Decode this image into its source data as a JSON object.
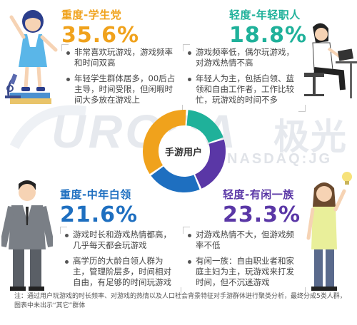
{
  "center": {
    "label": "手游用户"
  },
  "segments": [
    {
      "title": "重度-学生党",
      "percent": "35.6%",
      "value": 35.6,
      "color": "#f0a21c",
      "points": [
        "非常喜欢玩游戏，游戏频率和时间双高",
        "年轻学生群体居多，00后占主导，时间受限，但闲暇时间大多放在游戏上"
      ]
    },
    {
      "title": "轻度-年轻职人",
      "percent": "18.8%",
      "value": 18.8,
      "color": "#1fb19a",
      "points": [
        "游戏频率低，偶尔玩游戏，对游戏热情不高",
        "年轻人为主，包括白领、蓝领和自由工作者，工作比较忙，玩游戏的时间不多"
      ]
    },
    {
      "title": "重度-中年白领",
      "percent": "21.6%",
      "value": 21.6,
      "color": "#1e6fc0",
      "points": [
        "游戏时长和游戏热情都高，几乎每天都会玩游戏",
        "高学历的大龄白领人群为主，管理阶层多，时间相对自由，有足够的时间玩游戏"
      ]
    },
    {
      "title": "轻度-有闲一族",
      "percent": "23.3%",
      "value": 23.3,
      "color": "#5a37a6",
      "points": [
        "对游戏热情不大，但游戏频率不低",
        "有闲一族：自由职业者和家庭主妇为主，玩游戏来打发时间，但不沉迷游戏"
      ]
    }
  ],
  "watermark": {
    "brand": "URORA",
    "brand_cn": "极光",
    "ticker": "NASDAQ:JG"
  },
  "footnote": "注：通过用户玩游戏的时长频率、对游戏的热情以及人口社会背景特征对手游群体进行聚类分析，最终分成5类人群，图表中未出示“其它”群体",
  "icons": [
    "student-girl-illustration",
    "laptop-worker-illustration",
    "businessman-illustration",
    "woman-lightbulb-illustration",
    "microscope-icon"
  ]
}
